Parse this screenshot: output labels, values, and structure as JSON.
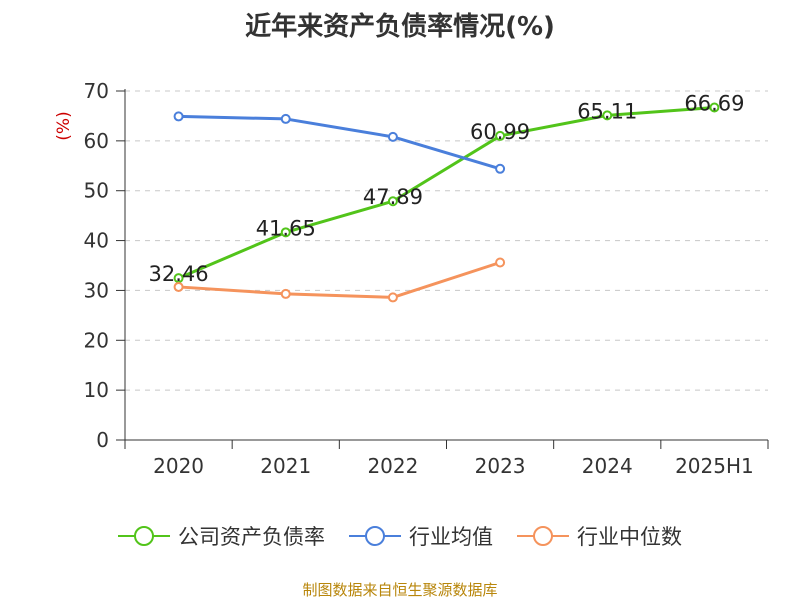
{
  "title": "近年来资产负债率情况(%)",
  "source": "制图数据来自恒生聚源数据库",
  "chart_data": {
    "type": "line",
    "categories": [
      "2020",
      "2021",
      "2022",
      "2023",
      "2024",
      "2025H1"
    ],
    "ylabel": "(%)",
    "ylim": [
      0,
      70
    ],
    "yticks": [
      0,
      10,
      20,
      30,
      40,
      50,
      60,
      70
    ],
    "grid": true,
    "legend_position": "bottom",
    "series": [
      {
        "name": "公司资产负债率",
        "color": "#52c41a",
        "values": [
          32.46,
          41.65,
          47.89,
          60.99,
          65.11,
          66.69
        ],
        "labels": [
          "32.46",
          "41.65",
          "47.89",
          "60.99",
          "65.11",
          "66.69"
        ]
      },
      {
        "name": "行业均值",
        "color": "#4a7fdb",
        "values": [
          64.9,
          64.4,
          60.8,
          54.4,
          null,
          null
        ]
      },
      {
        "name": "行业中位数",
        "color": "#f5935c",
        "values": [
          30.7,
          29.3,
          28.6,
          35.6,
          null,
          null
        ]
      }
    ]
  }
}
